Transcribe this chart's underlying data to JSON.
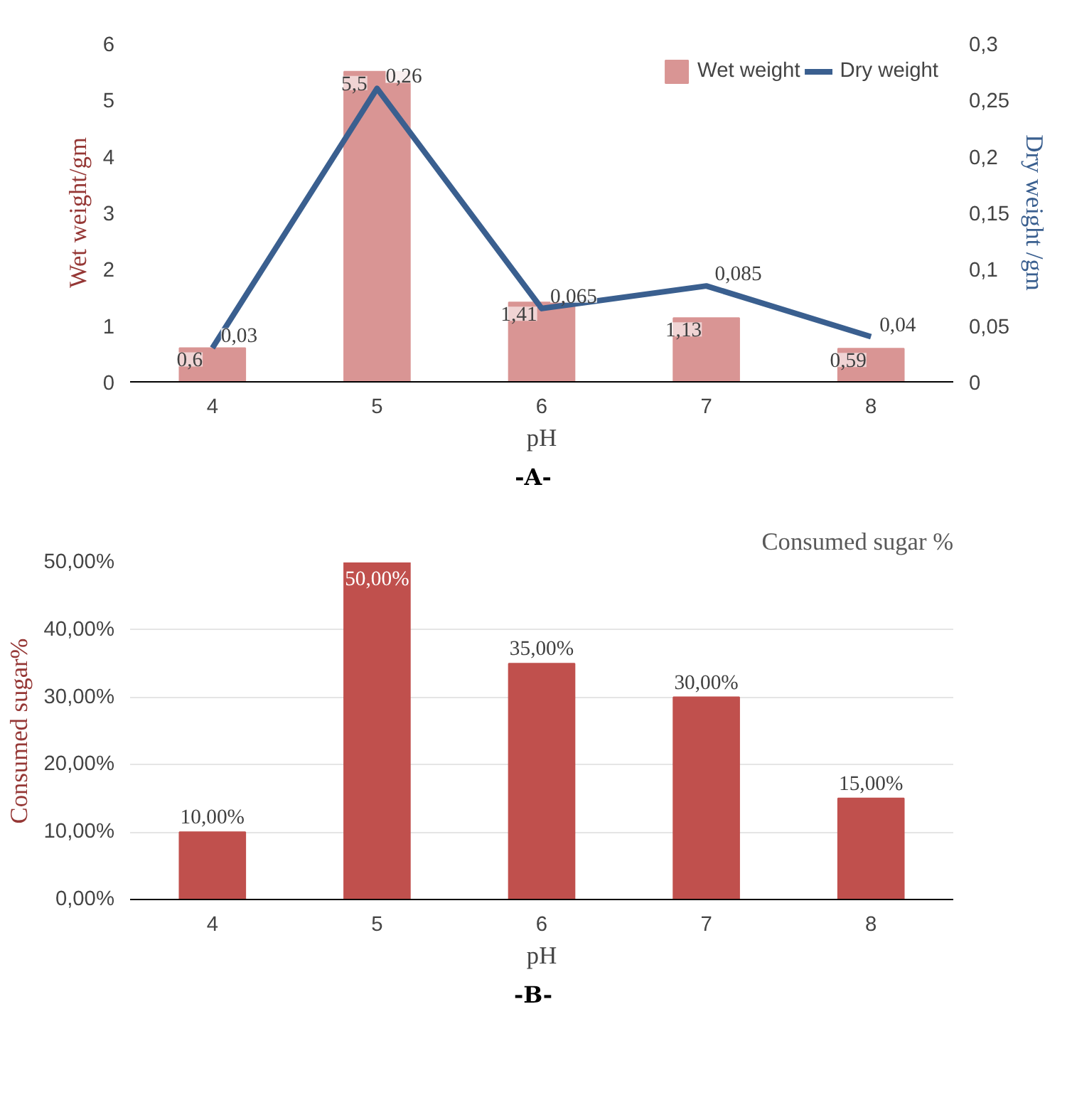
{
  "chart_data": [
    {
      "type": "bar",
      "categories": [
        "4",
        "5",
        "6",
        "7",
        "8"
      ],
      "xlabel": "pH",
      "ylabel": "Wet weight/gm",
      "y2label": "Dry weight /gm",
      "series": [
        {
          "name": "Wet weight",
          "color": "#d99594",
          "values": [
            0.6,
            5.5,
            1.41,
            1.13,
            0.59
          ],
          "value_labels": [
            "0,6",
            "5,5",
            "1,41",
            "1,13",
            "0,59"
          ]
        },
        {
          "name": "Dry weight",
          "type": "line",
          "axis": "y2",
          "color": "#3a5f8f",
          "values": [
            0.03,
            0.26,
            0.065,
            0.085,
            0.04
          ],
          "value_labels": [
            "0,03",
            "0,26",
            "0,065",
            "0,085",
            "0,04"
          ]
        }
      ],
      "ylim": [
        0,
        6
      ],
      "yticks": [
        0,
        1,
        2,
        3,
        4,
        5,
        6
      ],
      "y2lim": [
        0,
        0.3
      ],
      "y2ticks": [
        0,
        {
          "value": 0.05,
          "label": "0,05"
        },
        {
          "value": 0.1,
          "label": "0,1"
        },
        {
          "value": 0.15,
          "label": "0,15"
        },
        {
          "value": 0.2,
          "label": "0,2"
        },
        {
          "value": 0.25,
          "label": "0,25"
        },
        {
          "value": 0.3,
          "label": "0,3"
        }
      ],
      "legend": "top right",
      "grid": false,
      "annotations": [
        "-A-"
      ]
    },
    {
      "type": "bar",
      "title": "Consumed sugar %",
      "categories": [
        "4",
        "5",
        "6",
        "7",
        "8"
      ],
      "xlabel": "pH",
      "ylabel": "Consumed sugar%",
      "series": [
        {
          "color": "#c0504d",
          "values": [
            10,
            50,
            35,
            30,
            15
          ],
          "value_labels": [
            "10,00%",
            "50,00%",
            "35,00%",
            "30,00%",
            "15,00%"
          ]
        }
      ],
      "ylim": [
        0,
        50
      ],
      "yticks": [
        {
          "value": 0,
          "label": "0,00%"
        },
        {
          "value": 10,
          "label": "10,00%"
        },
        {
          "value": 20,
          "label": "20,00%"
        },
        {
          "value": 30,
          "label": "30,00%"
        },
        {
          "value": 40,
          "label": "40,00%"
        },
        {
          "value": 50,
          "label": "50,00%"
        }
      ],
      "legend": false,
      "grid": "y",
      "annotations": [
        "-B-"
      ]
    }
  ]
}
